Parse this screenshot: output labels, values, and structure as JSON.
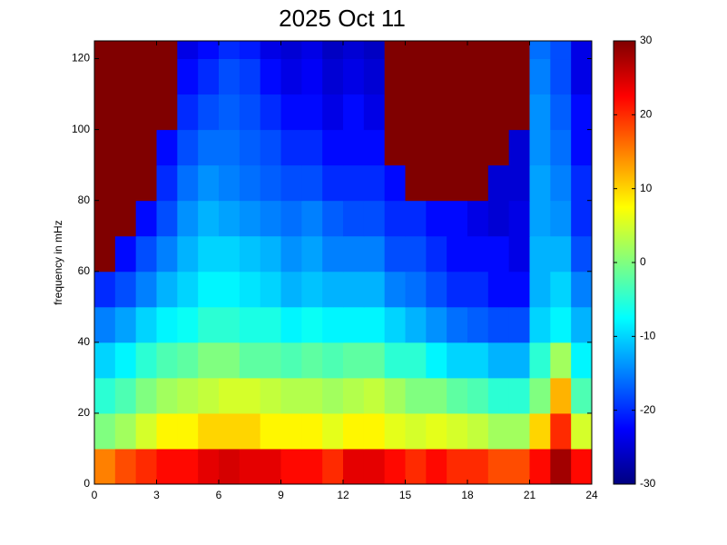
{
  "chart_data": {
    "type": "heatmap",
    "title": "2025 Oct 11",
    "ylabel": "frequency in mHz",
    "x": [
      0,
      1,
      2,
      3,
      4,
      5,
      6,
      7,
      8,
      9,
      10,
      11,
      12,
      13,
      14,
      15,
      16,
      17,
      18,
      19,
      20,
      21,
      22,
      23,
      24
    ],
    "y": [
      0,
      10,
      20,
      30,
      40,
      50,
      60,
      70,
      80,
      90,
      100,
      110,
      120,
      125
    ],
    "z": [
      [
        15,
        18,
        20,
        22,
        22,
        24,
        25,
        24,
        24,
        22,
        22,
        20,
        24,
        24,
        22,
        20,
        22,
        20,
        20,
        18,
        18,
        22,
        28,
        22
      ],
      [
        0,
        2,
        5,
        8,
        8,
        10,
        10,
        10,
        8,
        8,
        8,
        6,
        8,
        8,
        6,
        5,
        6,
        5,
        4,
        2,
        2,
        10,
        20,
        5
      ],
      [
        -5,
        -3,
        0,
        2,
        3,
        4,
        5,
        5,
        4,
        3,
        3,
        2,
        3,
        4,
        2,
        0,
        0,
        -2,
        -3,
        -5,
        -5,
        0,
        12,
        -3
      ],
      [
        -10,
        -8,
        -5,
        -3,
        -2,
        0,
        0,
        -2,
        -2,
        -3,
        -2,
        -3,
        -2,
        -2,
        -5,
        -5,
        -8,
        -10,
        -10,
        -12,
        -12,
        -5,
        2,
        -8
      ],
      [
        -15,
        -13,
        -10,
        -8,
        -7,
        -5,
        -5,
        -6,
        -6,
        -8,
        -7,
        -8,
        -8,
        -8,
        -10,
        -12,
        -14,
        -16,
        -17,
        -18,
        -18,
        -10,
        -8,
        -12
      ],
      [
        -20,
        -18,
        -15,
        -12,
        -10,
        -8,
        -8,
        -9,
        -10,
        -12,
        -11,
        -12,
        -12,
        -12,
        -15,
        -16,
        -18,
        -20,
        -20,
        -22,
        -22,
        -12,
        -10,
        -15
      ],
      [
        30,
        -22,
        -18,
        -15,
        -12,
        -10,
        -10,
        -11,
        -12,
        -14,
        -13,
        -15,
        -15,
        -15,
        -18,
        -18,
        -20,
        -22,
        -22,
        -22,
        -24,
        -12,
        -12,
        -18
      ],
      [
        30,
        30,
        -22,
        -18,
        -14,
        -12,
        -13,
        -14,
        -15,
        -16,
        -15,
        -17,
        -18,
        -18,
        -20,
        -20,
        -22,
        -22,
        -24,
        -25,
        -24,
        -13,
        -14,
        -20
      ],
      [
        30,
        30,
        30,
        -20,
        -16,
        -14,
        -15,
        -16,
        -17,
        -18,
        -18,
        -20,
        -20,
        -20,
        -22,
        30,
        30,
        30,
        30,
        -25,
        -25,
        -13,
        -15,
        -20
      ],
      [
        30,
        30,
        30,
        -22,
        -18,
        -16,
        -16,
        -17,
        -18,
        -20,
        -20,
        -22,
        -22,
        -22,
        30,
        30,
        30,
        30,
        30,
        30,
        -25,
        -14,
        -16,
        -22
      ],
      [
        30,
        30,
        30,
        30,
        -20,
        -18,
        -17,
        -18,
        -20,
        -22,
        -22,
        -24,
        -22,
        -24,
        30,
        30,
        30,
        30,
        30,
        30,
        30,
        -14,
        -17,
        -22
      ],
      [
        30,
        30,
        30,
        30,
        -22,
        -20,
        -18,
        -19,
        -22,
        -24,
        -23,
        -25,
        -24,
        -25,
        30,
        30,
        30,
        30,
        30,
        30,
        30,
        -15,
        -18,
        -24
      ],
      [
        30,
        30,
        30,
        30,
        -24,
        -22,
        -20,
        -21,
        -24,
        -25,
        -24,
        -26,
        -25,
        -26,
        30,
        30,
        30,
        30,
        30,
        30,
        30,
        -16,
        -18,
        -24
      ]
    ],
    "colormap": "jet",
    "xlim": [
      0,
      24
    ],
    "xticks": [
      0,
      3,
      6,
      9,
      12,
      15,
      18,
      21,
      24
    ],
    "ylim": [
      0,
      125
    ],
    "yticks": [
      0,
      20,
      40,
      60,
      80,
      100,
      120
    ],
    "clim": [
      -30,
      30
    ],
    "cticks": [
      -30,
      -20,
      -10,
      0,
      10,
      20,
      30
    ]
  }
}
